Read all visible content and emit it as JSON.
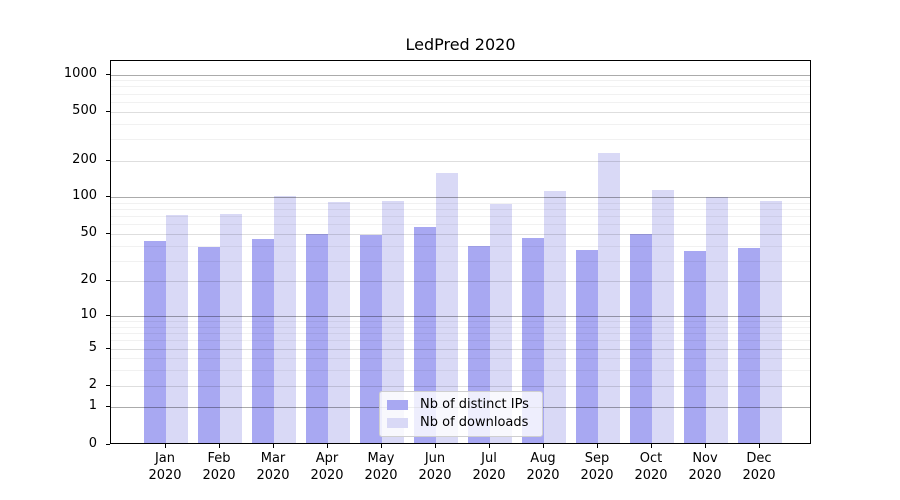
{
  "chart_data": {
    "type": "bar",
    "title": "LedPred 2020",
    "categories": [
      "Jan 2020",
      "Feb 2020",
      "Mar 2020",
      "Apr 2020",
      "May 2020",
      "Jun 2020",
      "Jul 2020",
      "Aug 2020",
      "Sep 2020",
      "Oct 2020",
      "Nov 2020",
      "Dec 2020"
    ],
    "series": [
      {
        "name": "Nb of distinct IPs",
        "color": "#a8a8f2",
        "values": [
          44,
          39,
          45,
          50,
          49,
          57,
          40,
          46,
          37,
          50,
          36,
          38
        ]
      },
      {
        "name": "Nb of downloads",
        "color": "#d9d9f6",
        "values": [
          72,
          73,
          102,
          92,
          94,
          157,
          88,
          113,
          232,
          115,
          100,
          93
        ]
      }
    ],
    "yscale": "log1p",
    "ylim": [
      0,
      1250
    ],
    "yticks": [
      0,
      1,
      2,
      5,
      10,
      20,
      50,
      100,
      200,
      500,
      1000
    ],
    "yticks_minor": [
      3,
      4,
      6,
      7,
      8,
      9,
      30,
      40,
      60,
      70,
      80,
      90,
      300,
      400,
      600,
      700,
      800,
      900
    ],
    "grid": "both",
    "legend_position": "lower center",
    "xlabel": "",
    "ylabel": ""
  },
  "legend": {
    "items": [
      {
        "label": "Nb of distinct IPs",
        "color": "#a8a8f2"
      },
      {
        "label": "Nb of downloads",
        "color": "#d9d9f6"
      }
    ]
  }
}
